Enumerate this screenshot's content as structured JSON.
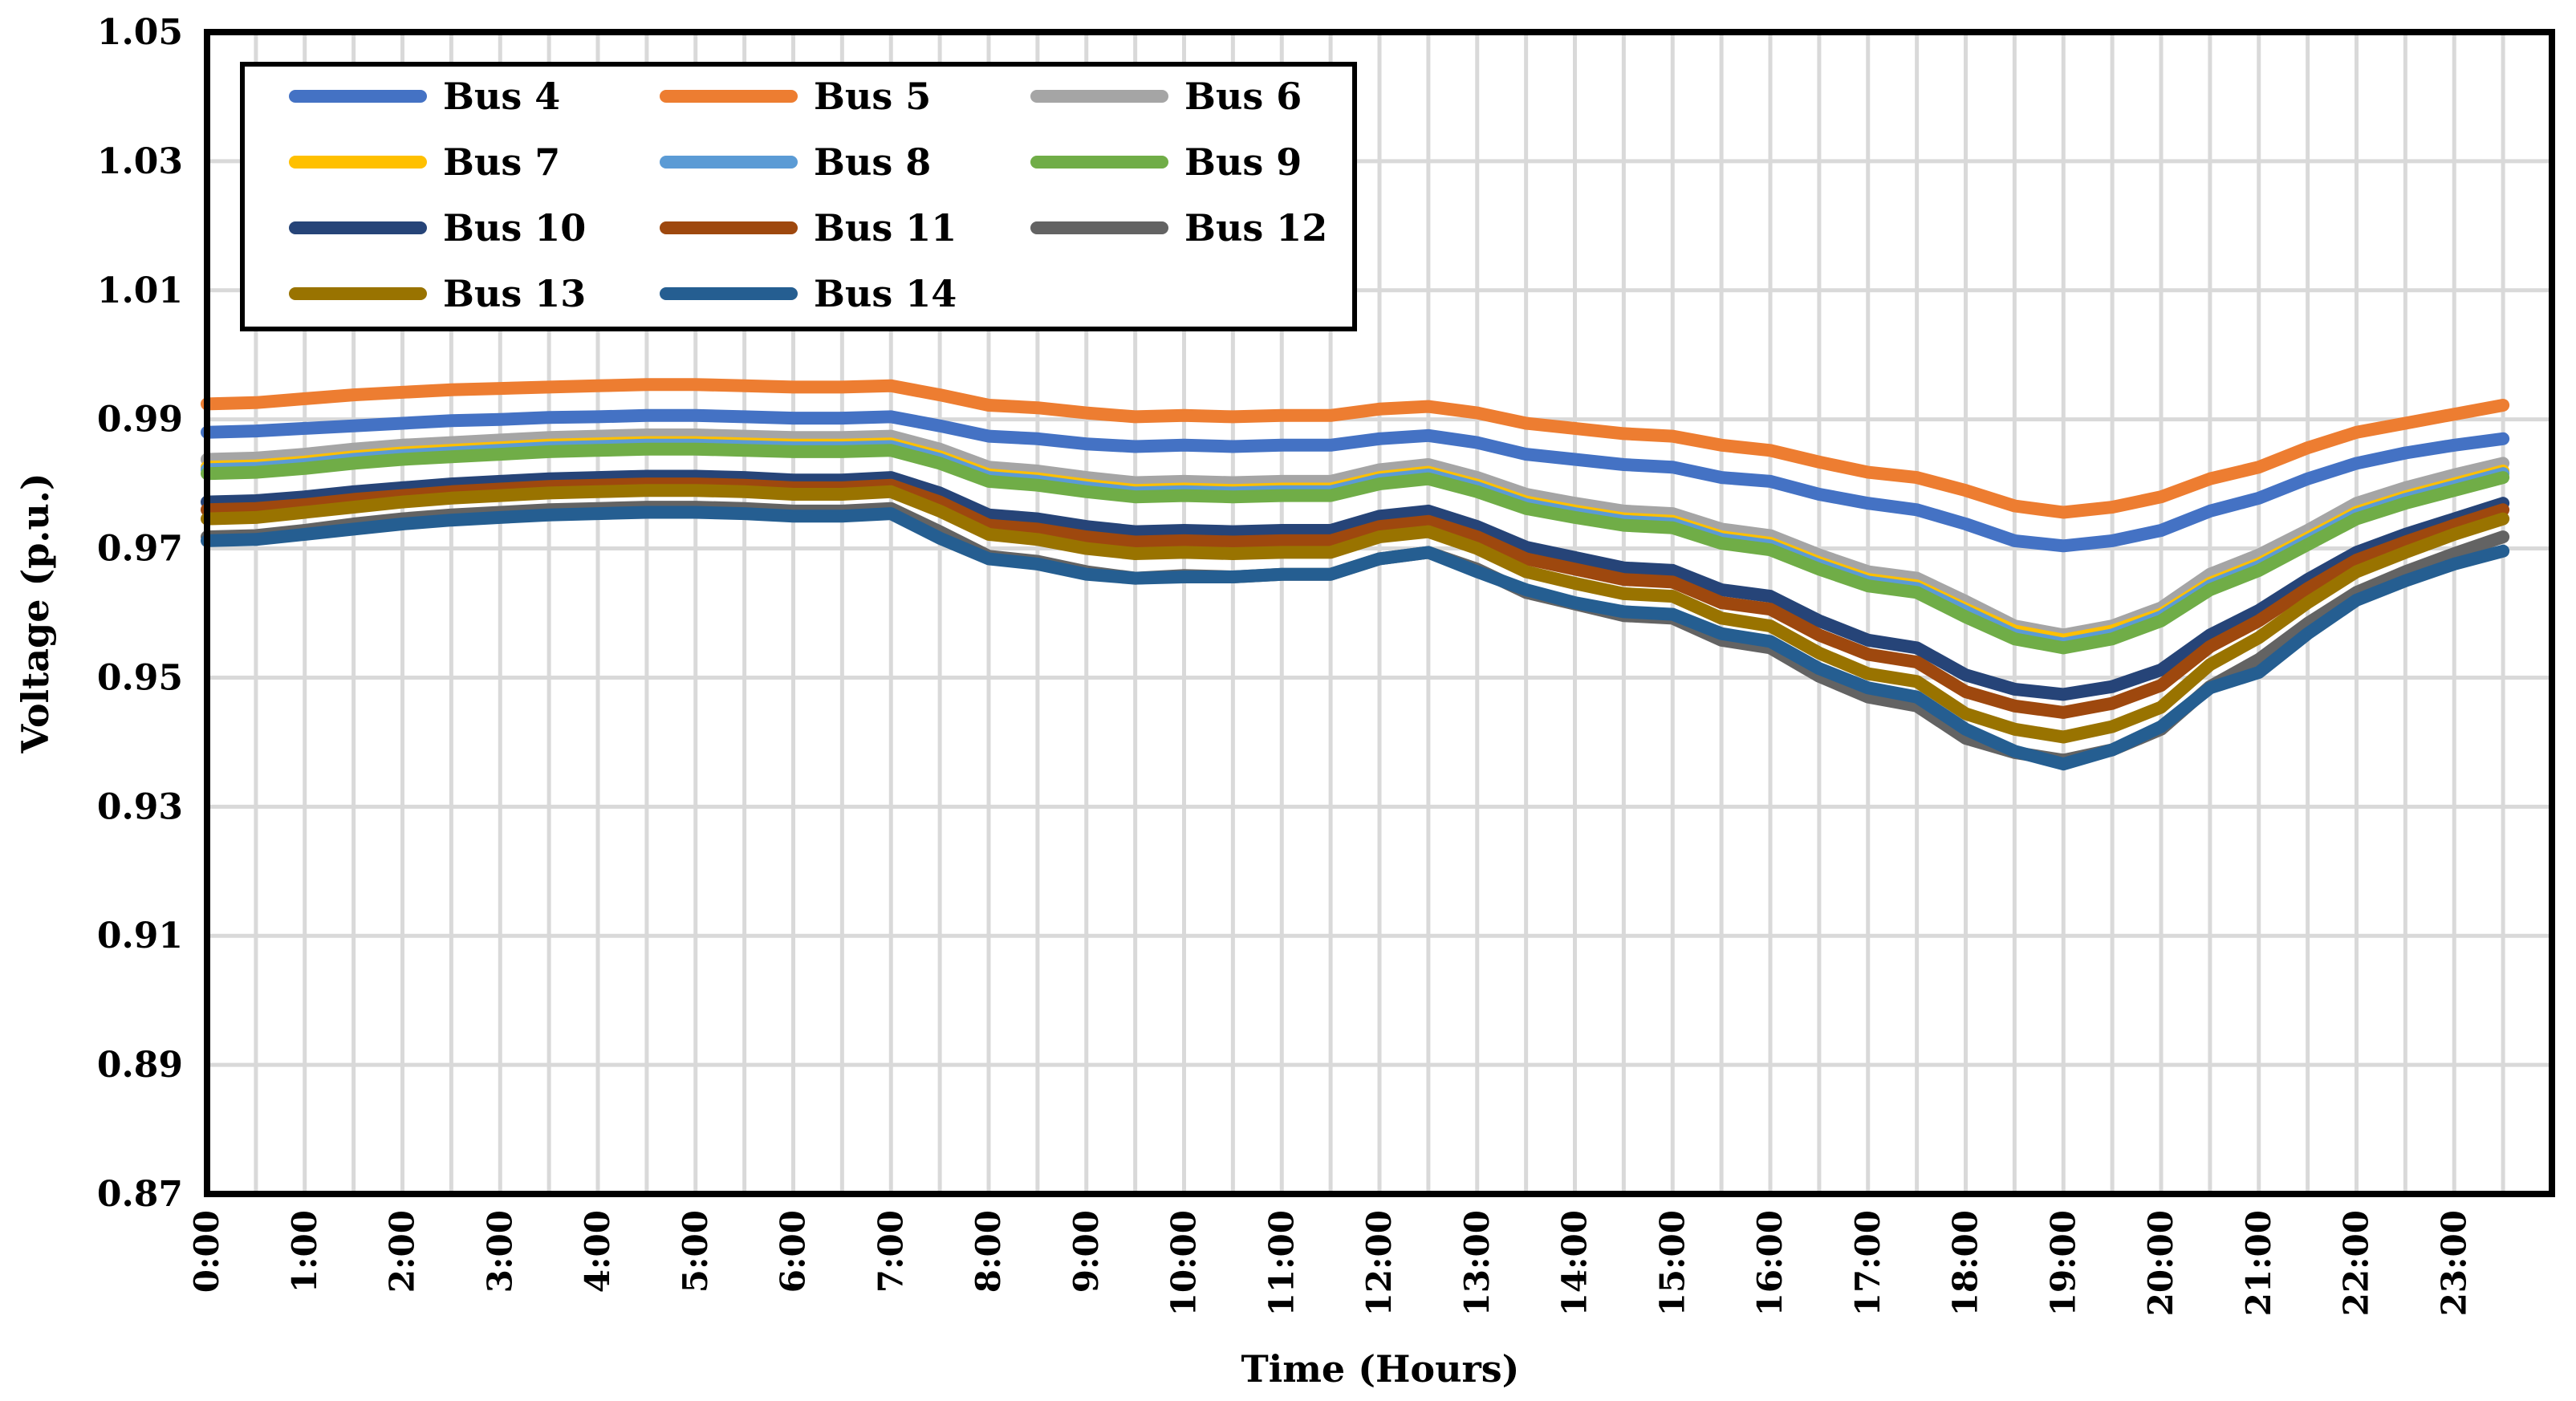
{
  "chart_data": {
    "type": "line",
    "title": "",
    "xlabel": "Time (Hours)",
    "ylabel": "Voltage (p.u.)",
    "ylim": [
      0.87,
      1.05
    ],
    "y_ticks": [
      "1.05",
      "1.03",
      "1.01",
      "0.99",
      "0.97",
      "0.95",
      "0.93",
      "0.91",
      "0.89",
      "0.87"
    ],
    "x_tick_labels": [
      "0:00",
      "1:00",
      "2:00",
      "3:00",
      "4:00",
      "5:00",
      "6:00",
      "7:00",
      "8:00",
      "9:00",
      "10:00",
      "11:00",
      "12:00",
      "13:00",
      "14:00",
      "15:00",
      "16:00",
      "17:00",
      "18:00",
      "19:00",
      "20:00",
      "21:00",
      "22:00",
      "23:00"
    ],
    "x_hours": [
      0,
      0.5,
      1,
      1.5,
      2,
      2.5,
      3,
      3.5,
      4,
      4.5,
      5,
      5.5,
      6,
      6.5,
      7,
      7.5,
      8,
      8.5,
      9,
      9.5,
      10,
      10.5,
      11,
      11.5,
      12,
      12.5,
      13,
      13.5,
      14,
      14.5,
      15,
      15.5,
      16,
      16.5,
      17,
      17.5,
      18,
      18.5,
      19,
      19.5,
      20,
      20.5,
      21,
      21.5,
      22,
      22.5,
      23,
      23.5
    ],
    "grid": true,
    "legend_position": "top-left inside",
    "series": [
      {
        "name": "Bus 4",
        "color": "#4472C4",
        "values": [
          0.988,
          0.9882,
          0.9886,
          0.989,
          0.9894,
          0.9898,
          0.99,
          0.9903,
          0.9904,
          0.9906,
          0.9906,
          0.9904,
          0.9902,
          0.9902,
          0.9904,
          0.989,
          0.9874,
          0.987,
          0.9862,
          0.9858,
          0.986,
          0.9858,
          0.986,
          0.986,
          0.987,
          0.9875,
          0.9864,
          0.9846,
          0.9838,
          0.983,
          0.9826,
          0.981,
          0.9804,
          0.9784,
          0.977,
          0.976,
          0.9738,
          0.9712,
          0.9704,
          0.9712,
          0.9728,
          0.9758,
          0.9778,
          0.9808,
          0.9832,
          0.9848,
          0.986,
          0.987
        ]
      },
      {
        "name": "Bus 5",
        "color": "#ED7D31",
        "values": [
          0.9924,
          0.9926,
          0.9932,
          0.9938,
          0.9942,
          0.9946,
          0.9948,
          0.995,
          0.9952,
          0.9954,
          0.9954,
          0.9952,
          0.995,
          0.995,
          0.9952,
          0.9938,
          0.9922,
          0.9918,
          0.991,
          0.9904,
          0.9906,
          0.9904,
          0.9906,
          0.9906,
          0.9916,
          0.992,
          0.991,
          0.9894,
          0.9886,
          0.9878,
          0.9874,
          0.986,
          0.9852,
          0.9834,
          0.9818,
          0.981,
          0.979,
          0.9766,
          0.9756,
          0.9764,
          0.978,
          0.9808,
          0.9826,
          0.9856,
          0.988,
          0.9894,
          0.9908,
          0.9922
        ]
      },
      {
        "name": "Bus 6",
        "color": "#A5A5A5",
        "values": [
          0.9838,
          0.984,
          0.9846,
          0.9854,
          0.986,
          0.9864,
          0.9868,
          0.9872,
          0.9874,
          0.9876,
          0.9876,
          0.9874,
          0.9872,
          0.9872,
          0.9874,
          0.9854,
          0.9826,
          0.982,
          0.981,
          0.9802,
          0.9804,
          0.9802,
          0.9804,
          0.9804,
          0.9822,
          0.983,
          0.981,
          0.9784,
          0.977,
          0.9758,
          0.9754,
          0.973,
          0.972,
          0.969,
          0.9664,
          0.9654,
          0.9618,
          0.958,
          0.9566,
          0.958,
          0.9608,
          0.966,
          0.969,
          0.9728,
          0.977,
          0.9794,
          0.9814,
          0.9832
        ]
      },
      {
        "name": "Bus 7",
        "color": "#FFC000",
        "values": [
          0.9826,
          0.9828,
          0.9834,
          0.9842,
          0.9848,
          0.9852,
          0.9856,
          0.986,
          0.9862,
          0.9864,
          0.9864,
          0.9862,
          0.986,
          0.986,
          0.9862,
          0.9842,
          0.9814,
          0.9808,
          0.9798,
          0.979,
          0.9792,
          0.979,
          0.9792,
          0.9792,
          0.981,
          0.9818,
          0.9798,
          0.9772,
          0.9758,
          0.9746,
          0.9742,
          0.9718,
          0.9708,
          0.9678,
          0.9652,
          0.9642,
          0.9606,
          0.9572,
          0.9558,
          0.9572,
          0.9598,
          0.9646,
          0.9676,
          0.9716,
          0.9756,
          0.978,
          0.98,
          0.982
        ]
      },
      {
        "name": "Bus 8",
        "color": "#5B9BD5",
        "values": [
          0.9822,
          0.9824,
          0.983,
          0.9838,
          0.9844,
          0.9848,
          0.9852,
          0.9856,
          0.9858,
          0.986,
          0.986,
          0.9858,
          0.9856,
          0.9856,
          0.9858,
          0.9838,
          0.981,
          0.9804,
          0.9794,
          0.9786,
          0.9788,
          0.9786,
          0.9788,
          0.9788,
          0.9806,
          0.9814,
          0.9794,
          0.9768,
          0.9754,
          0.9742,
          0.9738,
          0.9714,
          0.9704,
          0.9674,
          0.9648,
          0.9638,
          0.9602,
          0.9566,
          0.9552,
          0.9566,
          0.9594,
          0.9642,
          0.9672,
          0.9712,
          0.9752,
          0.9776,
          0.9796,
          0.9816
        ]
      },
      {
        "name": "Bus 9",
        "color": "#70AD47",
        "values": [
          0.9816,
          0.9818,
          0.9824,
          0.9832,
          0.9838,
          0.9842,
          0.9846,
          0.985,
          0.9852,
          0.9854,
          0.9854,
          0.9852,
          0.985,
          0.985,
          0.9852,
          0.9832,
          0.9804,
          0.9798,
          0.9788,
          0.978,
          0.9782,
          0.978,
          0.9782,
          0.9782,
          0.98,
          0.9808,
          0.9788,
          0.9762,
          0.9748,
          0.9736,
          0.9732,
          0.9708,
          0.9698,
          0.9668,
          0.9642,
          0.9632,
          0.9594,
          0.956,
          0.9546,
          0.956,
          0.9588,
          0.9636,
          0.9666,
          0.9706,
          0.9746,
          0.977,
          0.979,
          0.981
        ]
      },
      {
        "name": "Bus 10",
        "color": "#264478",
        "values": [
          0.9772,
          0.9774,
          0.978,
          0.9788,
          0.9794,
          0.98,
          0.9804,
          0.9808,
          0.981,
          0.9812,
          0.9812,
          0.981,
          0.9806,
          0.9806,
          0.981,
          0.9786,
          0.9752,
          0.9746,
          0.9734,
          0.9726,
          0.9728,
          0.9726,
          0.9728,
          0.9728,
          0.975,
          0.9758,
          0.9734,
          0.9702,
          0.9686,
          0.967,
          0.9666,
          0.9636,
          0.9626,
          0.9588,
          0.9558,
          0.9546,
          0.9504,
          0.9482,
          0.9474,
          0.9486,
          0.9512,
          0.9566,
          0.9604,
          0.9652,
          0.9694,
          0.9722,
          0.9746,
          0.977
        ]
      },
      {
        "name": "Bus 11",
        "color": "#9E480E",
        "values": [
          0.976,
          0.9762,
          0.9768,
          0.9776,
          0.9782,
          0.9788,
          0.9792,
          0.9796,
          0.9798,
          0.98,
          0.98,
          0.9798,
          0.9794,
          0.9794,
          0.9798,
          0.9772,
          0.9736,
          0.973,
          0.9718,
          0.971,
          0.9712,
          0.971,
          0.9712,
          0.9712,
          0.9734,
          0.9742,
          0.9718,
          0.9684,
          0.9668,
          0.9652,
          0.9648,
          0.9616,
          0.9606,
          0.9566,
          0.9536,
          0.9524,
          0.9478,
          0.9456,
          0.9446,
          0.946,
          0.9488,
          0.9548,
          0.9588,
          0.9638,
          0.9682,
          0.971,
          0.9736,
          0.976
        ]
      },
      {
        "name": "Bus 12",
        "color": "#636363",
        "values": [
          0.9718,
          0.972,
          0.9728,
          0.9738,
          0.9746,
          0.9752,
          0.9756,
          0.976,
          0.9762,
          0.9764,
          0.9764,
          0.9762,
          0.9758,
          0.9758,
          0.9762,
          0.9726,
          0.9688,
          0.968,
          0.9664,
          0.9654,
          0.9658,
          0.9656,
          0.966,
          0.966,
          0.9684,
          0.9694,
          0.9668,
          0.9632,
          0.9614,
          0.9596,
          0.9592,
          0.9558,
          0.9546,
          0.9502,
          0.947,
          0.9456,
          0.9406,
          0.9384,
          0.9372,
          0.9388,
          0.942,
          0.9486,
          0.9528,
          0.9584,
          0.9632,
          0.9664,
          0.9692,
          0.9718
        ]
      },
      {
        "name": "Bus 13",
        "color": "#997300",
        "values": [
          0.9746,
          0.9748,
          0.9756,
          0.9764,
          0.9772,
          0.9778,
          0.9782,
          0.9786,
          0.9788,
          0.979,
          0.979,
          0.9788,
          0.9784,
          0.9784,
          0.9788,
          0.9758,
          0.9722,
          0.9714,
          0.97,
          0.9692,
          0.9694,
          0.9692,
          0.9694,
          0.9694,
          0.9718,
          0.9726,
          0.97,
          0.9664,
          0.9646,
          0.963,
          0.9626,
          0.9592,
          0.958,
          0.9538,
          0.9506,
          0.9494,
          0.9444,
          0.942,
          0.9408,
          0.9424,
          0.9454,
          0.952,
          0.9562,
          0.9616,
          0.9664,
          0.9694,
          0.9722,
          0.9746
        ]
      },
      {
        "name": "Bus 14",
        "color": "#255E91",
        "values": [
          0.9712,
          0.9714,
          0.9722,
          0.973,
          0.9738,
          0.9744,
          0.9748,
          0.9752,
          0.9754,
          0.9756,
          0.9756,
          0.9754,
          0.975,
          0.975,
          0.9754,
          0.9716,
          0.9684,
          0.9676,
          0.966,
          0.9654,
          0.9656,
          0.9656,
          0.966,
          0.966,
          0.9684,
          0.9694,
          0.9664,
          0.9636,
          0.9616,
          0.9602,
          0.9598,
          0.9568,
          0.9556,
          0.9514,
          0.9484,
          0.947,
          0.942,
          0.9386,
          0.9366,
          0.9388,
          0.9424,
          0.9484,
          0.9508,
          0.9568,
          0.962,
          0.965,
          0.9676,
          0.9696
        ]
      }
    ]
  }
}
